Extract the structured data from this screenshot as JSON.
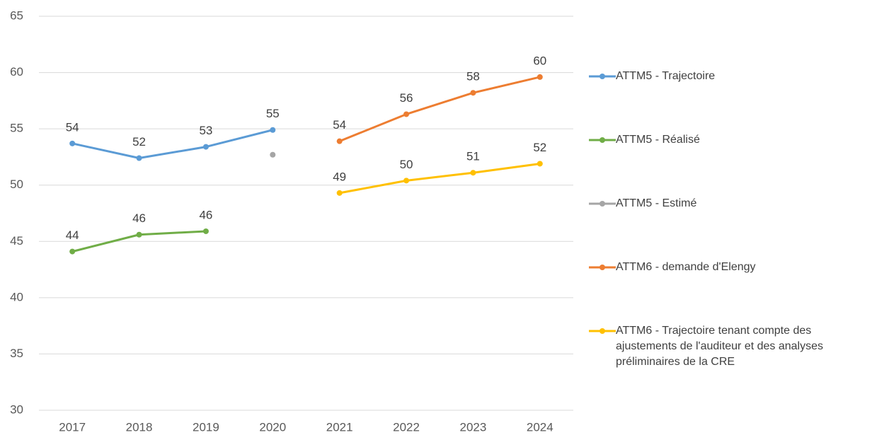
{
  "chart_data": {
    "type": "line",
    "categories": [
      "2017",
      "2018",
      "2019",
      "2020",
      "2021",
      "2022",
      "2023",
      "2024"
    ],
    "ylim": [
      30,
      65
    ],
    "yticks": [
      30,
      35,
      40,
      45,
      50,
      55,
      60,
      65
    ],
    "grid": true,
    "legend": "right",
    "series": [
      {
        "name": "ATTM5 - Trajectoire",
        "color": "#5b9bd5",
        "values": [
          53.7,
          52.4,
          53.4,
          54.9,
          null,
          null,
          null,
          null
        ],
        "value_labels": [
          "54",
          "52",
          "53",
          "55",
          null,
          null,
          null,
          null
        ]
      },
      {
        "name": "ATTM5 - Réalisé",
        "color": "#70ad47",
        "values": [
          44.1,
          45.6,
          45.9,
          null,
          null,
          null,
          null,
          null
        ],
        "value_labels": [
          "44",
          "46",
          "46",
          null,
          null,
          null,
          null,
          null
        ]
      },
      {
        "name": "ATTM5 - Estimé",
        "color": "#a5a5a5",
        "values": [
          null,
          null,
          null,
          52.7,
          null,
          null,
          null,
          null
        ]
      },
      {
        "name": "ATTM6 - demande d'Elengy",
        "color": "#ed7d31",
        "values": [
          null,
          null,
          null,
          null,
          53.9,
          56.3,
          58.2,
          59.6
        ],
        "value_labels": [
          null,
          null,
          null,
          null,
          "54",
          "56",
          "58",
          "60"
        ]
      },
      {
        "name": "ATTM6 - Trajectoire tenant compte des ajustements de l'auditeur et des analyses préliminaires de la CRE",
        "color": "#ffc000",
        "values": [
          null,
          null,
          null,
          null,
          49.3,
          50.4,
          51.1,
          51.9
        ],
        "value_labels": [
          null,
          null,
          null,
          null,
          "49",
          "50",
          "51",
          "52"
        ]
      }
    ]
  }
}
